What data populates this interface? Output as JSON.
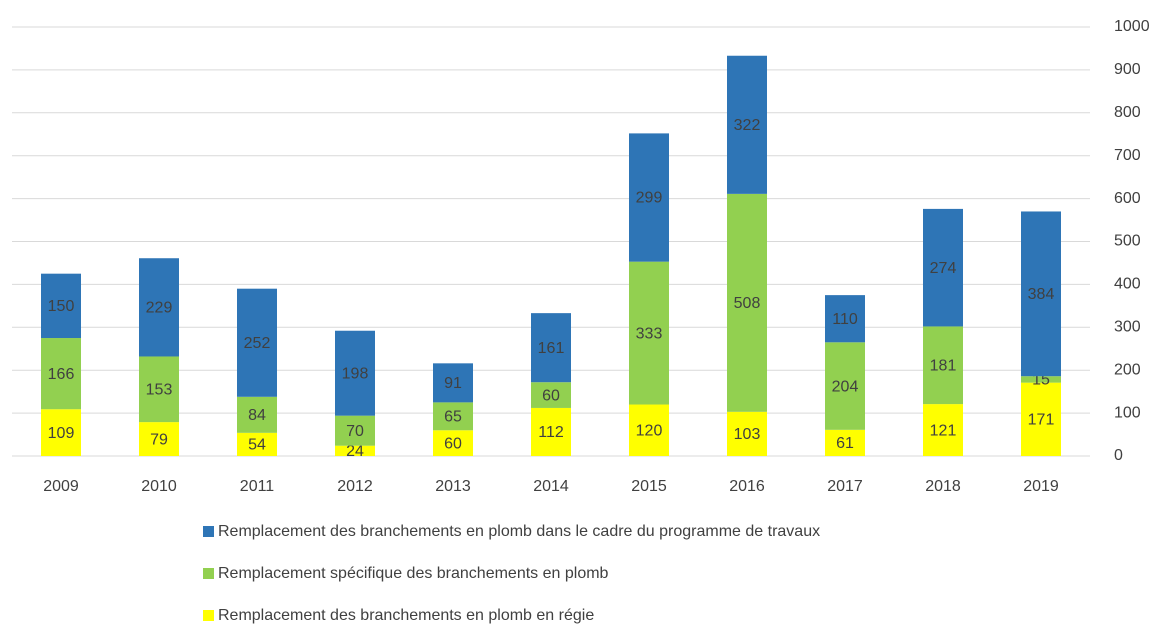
{
  "chart_data": {
    "type": "stacked_bar",
    "categories": [
      "2009",
      "2010",
      "2011",
      "2012",
      "2013",
      "2014",
      "2015",
      "2016",
      "2017",
      "2018",
      "2019"
    ],
    "series": [
      {
        "name": "Remplacement des branchements en plomb en régie",
        "color": "#ffff00",
        "values": [
          109,
          79,
          54,
          24,
          60,
          112,
          120,
          103,
          61,
          121,
          171
        ]
      },
      {
        "name": "Remplacement spécifique des branchements en plomb",
        "color": "#92d050",
        "values": [
          166,
          153,
          84,
          70,
          65,
          60,
          333,
          508,
          204,
          181,
          15
        ]
      },
      {
        "name": "Remplacement des branchements en plomb dans le cadre du programme de travaux",
        "color": "#2e75b6",
        "values": [
          150,
          229,
          252,
          198,
          91,
          161,
          299,
          322,
          110,
          274,
          384
        ]
      }
    ],
    "ylim": [
      0,
      1000
    ],
    "yticks": [
      0,
      100,
      200,
      300,
      400,
      500,
      600,
      700,
      800,
      900,
      1000
    ],
    "grid": true,
    "y_axis_side": "right",
    "legend": "bottom"
  }
}
